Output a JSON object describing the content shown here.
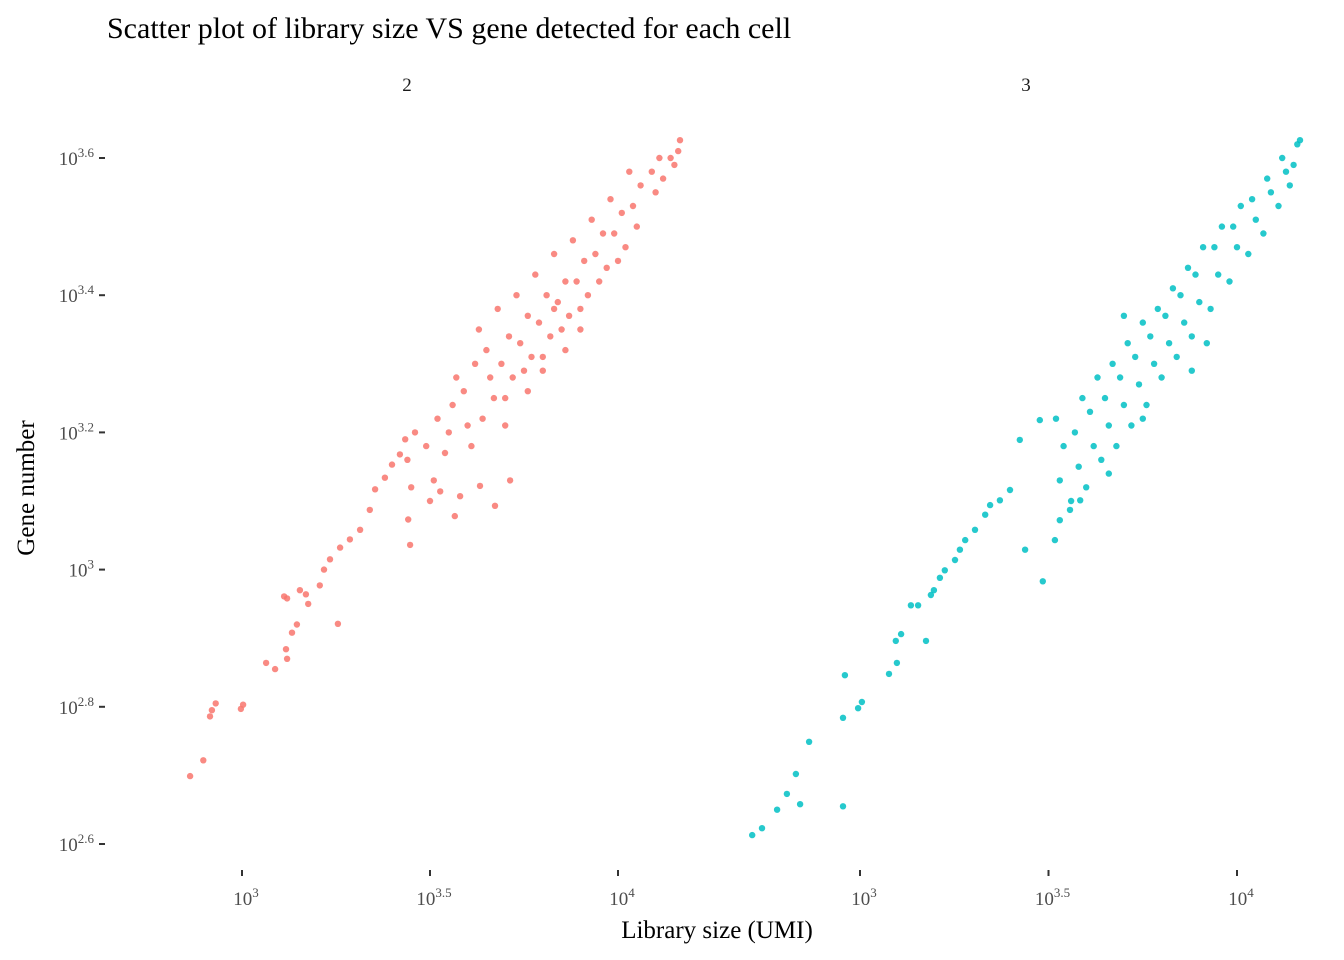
{
  "chart_data": {
    "type": "scatter",
    "title": "Scatter plot of library size VS gene detected for each cell",
    "xlabel": "Library size (UMI)",
    "ylabel": "Gene number",
    "scale": "log10",
    "grid": false,
    "legend": "none",
    "y_ticks": [
      {
        "exp": "2.6",
        "value": 2.6
      },
      {
        "exp": "2.8",
        "value": 2.8
      },
      {
        "exp": "3",
        "value": 3.0
      },
      {
        "exp": "3.2",
        "value": 3.2
      },
      {
        "exp": "3.4",
        "value": 3.4
      },
      {
        "exp": "3.6",
        "value": 3.6
      }
    ],
    "x_ticks": [
      {
        "exp": "3",
        "value": 3.0
      },
      {
        "exp": "3.5",
        "value": 3.5
      },
      {
        "exp": "4",
        "value": 4.0
      }
    ],
    "tick_base": "10",
    "ylim_log10": [
      2.55,
      3.65
    ],
    "panels": [
      {
        "label": "2",
        "color": "#F8766D",
        "points_log10": [
          [
            2.862,
            2.699
          ],
          [
            2.897,
            2.722
          ],
          [
            2.915,
            2.786
          ],
          [
            2.92,
            2.795
          ],
          [
            2.93,
            2.805
          ],
          [
            2.997,
            2.797
          ],
          [
            3.003,
            2.803
          ],
          [
            3.064,
            2.864
          ],
          [
            3.088,
            2.855
          ],
          [
            3.117,
            2.884
          ],
          [
            3.12,
            2.87
          ],
          [
            3.133,
            2.908
          ],
          [
            3.146,
            2.92
          ],
          [
            3.112,
            2.961
          ],
          [
            3.12,
            2.958
          ],
          [
            3.154,
            2.97
          ],
          [
            3.17,
            2.964
          ],
          [
            3.176,
            2.95
          ],
          [
            3.207,
            2.977
          ],
          [
            3.255,
            2.921
          ],
          [
            3.218,
            3.0
          ],
          [
            3.234,
            3.015
          ],
          [
            3.261,
            3.032
          ],
          [
            3.287,
            3.044
          ],
          [
            3.314,
            3.058
          ],
          [
            3.34,
            3.087
          ],
          [
            3.354,
            3.117
          ],
          [
            3.38,
            3.134
          ],
          [
            3.399,
            3.153
          ],
          [
            3.42,
            3.168
          ],
          [
            3.434,
            3.19
          ],
          [
            3.442,
            3.073
          ],
          [
            3.447,
            3.036
          ],
          [
            3.5,
            3.1
          ],
          [
            3.527,
            3.114
          ],
          [
            3.566,
            3.078
          ],
          [
            3.58,
            3.107
          ],
          [
            3.633,
            3.122
          ],
          [
            3.673,
            3.093
          ],
          [
            3.713,
            3.13
          ],
          [
            3.45,
            3.12
          ],
          [
            3.46,
            3.2
          ],
          [
            3.44,
            3.16
          ],
          [
            3.49,
            3.18
          ],
          [
            3.51,
            3.13
          ],
          [
            3.52,
            3.22
          ],
          [
            3.54,
            3.17
          ],
          [
            3.56,
            3.24
          ],
          [
            3.55,
            3.2
          ],
          [
            3.57,
            3.28
          ],
          [
            3.6,
            3.21
          ],
          [
            3.59,
            3.26
          ],
          [
            3.62,
            3.3
          ],
          [
            3.61,
            3.18
          ],
          [
            3.64,
            3.22
          ],
          [
            3.66,
            3.28
          ],
          [
            3.65,
            3.32
          ],
          [
            3.67,
            3.25
          ],
          [
            3.63,
            3.35
          ],
          [
            3.7,
            3.25
          ],
          [
            3.69,
            3.3
          ],
          [
            3.71,
            3.34
          ],
          [
            3.72,
            3.28
          ],
          [
            3.68,
            3.38
          ],
          [
            3.7,
            3.21
          ],
          [
            3.75,
            3.29
          ],
          [
            3.74,
            3.33
          ],
          [
            3.76,
            3.37
          ],
          [
            3.77,
            3.31
          ],
          [
            3.73,
            3.4
          ],
          [
            3.76,
            3.26
          ],
          [
            3.8,
            3.31
          ],
          [
            3.79,
            3.36
          ],
          [
            3.81,
            3.4
          ],
          [
            3.82,
            3.34
          ],
          [
            3.78,
            3.43
          ],
          [
            3.8,
            3.29
          ],
          [
            3.83,
            3.38
          ],
          [
            3.85,
            3.35
          ],
          [
            3.84,
            3.39
          ],
          [
            3.86,
            3.42
          ],
          [
            3.87,
            3.37
          ],
          [
            3.83,
            3.46
          ],
          [
            3.86,
            3.32
          ],
          [
            3.9,
            3.38
          ],
          [
            3.89,
            3.42
          ],
          [
            3.91,
            3.45
          ],
          [
            3.92,
            3.4
          ],
          [
            3.88,
            3.48
          ],
          [
            3.9,
            3.35
          ],
          [
            3.95,
            3.42
          ],
          [
            3.94,
            3.46
          ],
          [
            3.96,
            3.49
          ],
          [
            3.97,
            3.44
          ],
          [
            3.93,
            3.51
          ],
          [
            4.0,
            3.45
          ],
          [
            3.99,
            3.49
          ],
          [
            4.01,
            3.52
          ],
          [
            4.02,
            3.47
          ],
          [
            3.98,
            3.54
          ],
          [
            4.05,
            3.5
          ],
          [
            4.04,
            3.53
          ],
          [
            4.06,
            3.56
          ],
          [
            4.03,
            3.58
          ],
          [
            4.1,
            3.55
          ],
          [
            4.09,
            3.58
          ],
          [
            4.11,
            3.6
          ],
          [
            4.15,
            3.59
          ],
          [
            4.165,
            3.626
          ],
          [
            4.14,
            3.6
          ],
          [
            4.12,
            3.57
          ],
          [
            4.16,
            3.61
          ]
        ]
      },
      {
        "label": "3",
        "color": "#00BFC4",
        "points_log10": [
          [
            2.714,
            2.613
          ],
          [
            2.74,
            2.623
          ],
          [
            2.78,
            2.65
          ],
          [
            2.806,
            2.673
          ],
          [
            2.83,
            2.702
          ],
          [
            2.841,
            2.658
          ],
          [
            2.865,
            2.749
          ],
          [
            2.955,
            2.784
          ],
          [
            2.96,
            2.846
          ],
          [
            2.955,
            2.655
          ],
          [
            2.995,
            2.798
          ],
          [
            3.005,
            2.807
          ],
          [
            3.077,
            2.848
          ],
          [
            3.098,
            2.864
          ],
          [
            3.095,
            2.896
          ],
          [
            3.109,
            2.906
          ],
          [
            3.175,
            2.896
          ],
          [
            3.135,
            2.948
          ],
          [
            3.154,
            2.948
          ],
          [
            3.188,
            2.963
          ],
          [
            3.196,
            2.97
          ],
          [
            3.212,
            2.988
          ],
          [
            3.225,
            2.999
          ],
          [
            3.252,
            3.014
          ],
          [
            3.265,
            3.029
          ],
          [
            3.279,
            3.043
          ],
          [
            3.305,
            3.058
          ],
          [
            3.332,
            3.08
          ],
          [
            3.345,
            3.094
          ],
          [
            3.371,
            3.101
          ],
          [
            3.398,
            3.116
          ],
          [
            3.438,
            3.029
          ],
          [
            3.485,
            2.983
          ],
          [
            3.517,
            3.043
          ],
          [
            3.53,
            3.072
          ],
          [
            3.557,
            3.087
          ],
          [
            3.584,
            3.101
          ],
          [
            3.424,
            3.189
          ],
          [
            3.477,
            3.218
          ],
          [
            3.53,
            3.13
          ],
          [
            3.54,
            3.18
          ],
          [
            3.52,
            3.22
          ],
          [
            3.56,
            3.1
          ],
          [
            3.58,
            3.15
          ],
          [
            3.57,
            3.2
          ],
          [
            3.59,
            3.25
          ],
          [
            3.6,
            3.12
          ],
          [
            3.62,
            3.18
          ],
          [
            3.61,
            3.23
          ],
          [
            3.63,
            3.28
          ],
          [
            3.64,
            3.16
          ],
          [
            3.66,
            3.21
          ],
          [
            3.65,
            3.25
          ],
          [
            3.67,
            3.3
          ],
          [
            3.68,
            3.18
          ],
          [
            3.7,
            3.24
          ],
          [
            3.69,
            3.28
          ],
          [
            3.71,
            3.33
          ],
          [
            3.72,
            3.21
          ],
          [
            3.74,
            3.27
          ],
          [
            3.73,
            3.31
          ],
          [
            3.75,
            3.36
          ],
          [
            3.76,
            3.24
          ],
          [
            3.78,
            3.3
          ],
          [
            3.77,
            3.34
          ],
          [
            3.79,
            3.38
          ],
          [
            3.8,
            3.28
          ],
          [
            3.82,
            3.33
          ],
          [
            3.81,
            3.37
          ],
          [
            3.83,
            3.41
          ],
          [
            3.84,
            3.31
          ],
          [
            3.86,
            3.36
          ],
          [
            3.85,
            3.4
          ],
          [
            3.87,
            3.44
          ],
          [
            3.88,
            3.34
          ],
          [
            3.9,
            3.39
          ],
          [
            3.89,
            3.43
          ],
          [
            3.91,
            3.47
          ],
          [
            3.93,
            3.38
          ],
          [
            3.95,
            3.43
          ],
          [
            3.94,
            3.47
          ],
          [
            3.96,
            3.5
          ],
          [
            3.98,
            3.42
          ],
          [
            4.0,
            3.47
          ],
          [
            3.99,
            3.5
          ],
          [
            4.01,
            3.53
          ],
          [
            4.03,
            3.46
          ],
          [
            4.05,
            3.51
          ],
          [
            4.04,
            3.54
          ],
          [
            4.07,
            3.49
          ],
          [
            4.09,
            3.55
          ],
          [
            4.08,
            3.57
          ],
          [
            4.11,
            3.53
          ],
          [
            4.13,
            3.58
          ],
          [
            4.12,
            3.6
          ],
          [
            4.15,
            3.59
          ],
          [
            4.16,
            3.62
          ],
          [
            4.167,
            3.626
          ],
          [
            4.14,
            3.56
          ],
          [
            3.88,
            3.29
          ],
          [
            3.92,
            3.33
          ],
          [
            3.75,
            3.22
          ],
          [
            3.7,
            3.37
          ],
          [
            3.66,
            3.14
          ]
        ]
      }
    ]
  }
}
